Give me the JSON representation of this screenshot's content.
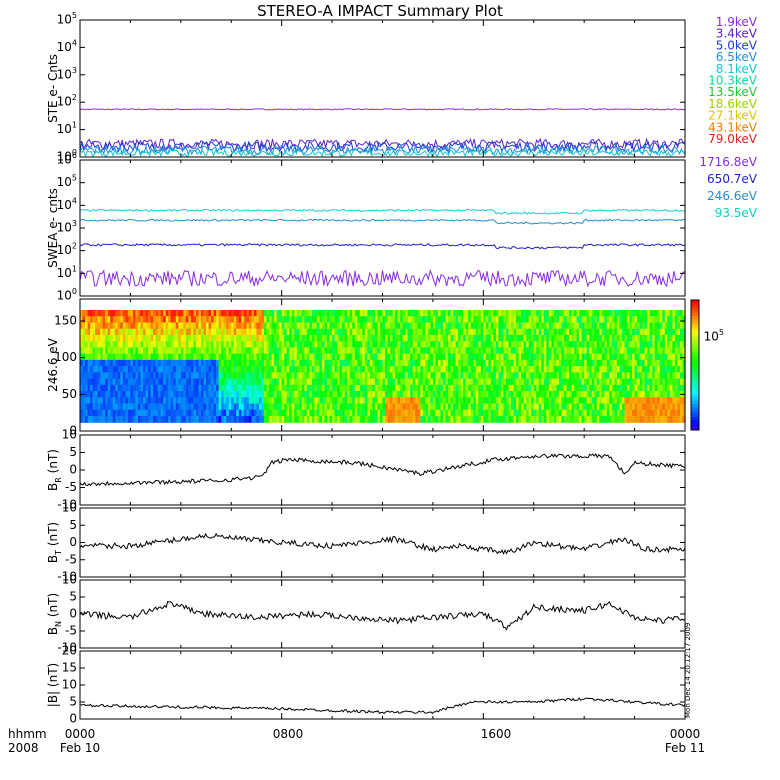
{
  "title": "STEREO-A IMPACT Summary Plot",
  "stamp": "Mon Dec 14 20:12:17 2009",
  "footer": {
    "hhmm_label": "hhmm",
    "year_label": "2008",
    "tick_labels": [
      "0000",
      "0800",
      "1600",
      "0000"
    ],
    "date_start": "Feb 10",
    "date_end": "Feb 11"
  },
  "chart_data": [
    {
      "type": "line",
      "ylabel": "STE e- Cnts",
      "yscale": "log",
      "ylim": [
        1,
        100000
      ],
      "ytick_labels": [
        "10^0",
        "10^1",
        "10^2",
        "10^3",
        "10^4",
        "10^5"
      ],
      "x_hours": [
        0,
        24
      ],
      "legend": [
        {
          "label": "1.9keV",
          "color": "#8a2be2"
        },
        {
          "label": "3.4keV",
          "color": "#6020d0"
        },
        {
          "label": "5.0keV",
          "color": "#1f3fd0"
        },
        {
          "label": "6.5keV",
          "color": "#2090e0"
        },
        {
          "label": "8.1keV",
          "color": "#10c8d0"
        },
        {
          "label": "10.3keV",
          "color": "#10d8a0"
        },
        {
          "label": "13.5keV",
          "color": "#20c830"
        },
        {
          "label": "18.6keV",
          "color": "#a0d000"
        },
        {
          "label": "27.1keV",
          "color": "#e0c000"
        },
        {
          "label": "43.1keV",
          "color": "#f08000"
        },
        {
          "label": "79.0keV",
          "color": "#e02020"
        }
      ],
      "series": [
        {
          "name": "1.9keV",
          "color": "#8a2be2",
          "level": 55,
          "noise": 0.02
        },
        {
          "name": "3.4keV",
          "color": "#6020d0",
          "level": 3.0,
          "noise": 0.18
        },
        {
          "name": "5.0keV",
          "color": "#1f3fd0",
          "level": 2.4,
          "noise": 0.18
        },
        {
          "name": "6.5keV",
          "color": "#2090e0",
          "level": 1.8,
          "noise": 0.16
        },
        {
          "name": "8.1keV",
          "color": "#10c8d0",
          "level": 1.4,
          "noise": 0.12
        }
      ]
    },
    {
      "type": "line",
      "ylabel": "SWEA e- cnts",
      "yscale": "log",
      "ylim": [
        1,
        1000000
      ],
      "ytick_labels": [
        "10^0",
        "10^1",
        "10^2",
        "10^3",
        "10^4",
        "10^5",
        "10^6"
      ],
      "x_hours": [
        0,
        24
      ],
      "legend": [
        {
          "label": "1716.8eV",
          "color": "#8a2be2"
        },
        {
          "label": "650.7eV",
          "color": "#1f1fd0"
        },
        {
          "label": "246.6eV",
          "color": "#1f8fd0"
        },
        {
          "label": "93.5eV",
          "color": "#10d0c8"
        }
      ],
      "series": [
        {
          "name": "93.5eV",
          "color": "#10d0c8",
          "level": 6000,
          "noise": 0.04
        },
        {
          "name": "246.6eV",
          "color": "#1f8fd0",
          "level": 2200,
          "noise": 0.04
        },
        {
          "name": "650.7eV",
          "color": "#1f1fd0",
          "level": 180,
          "noise": 0.05
        },
        {
          "name": "1716.8eV",
          "color": "#8a2be2",
          "level": 6,
          "noise": 0.35
        }
      ]
    },
    {
      "type": "heatmap",
      "ylabel": "246.6 eV",
      "ylim": [
        0,
        180
      ],
      "ytick_labels": [
        "0",
        "50",
        "100",
        "150"
      ],
      "colorbar_label": "10^5",
      "x_hours": [
        0,
        24
      ]
    },
    {
      "type": "line",
      "ylabel": "B_R (nT)",
      "ylim": [
        -10,
        10
      ],
      "ytick_labels": [
        "-10",
        "-5",
        "0",
        "5",
        "10"
      ],
      "x_hours": [
        0,
        24
      ],
      "keyframes": [
        [
          0,
          -4
        ],
        [
          3,
          -3.5
        ],
        [
          5.5,
          -3
        ],
        [
          7.2,
          -2
        ],
        [
          7.6,
          2
        ],
        [
          8.2,
          3
        ],
        [
          11,
          2
        ],
        [
          13.5,
          -1
        ],
        [
          15,
          1
        ],
        [
          16.5,
          3
        ],
        [
          18,
          4
        ],
        [
          21,
          4
        ],
        [
          21.6,
          -1
        ],
        [
          22,
          2
        ],
        [
          24,
          1
        ]
      ],
      "noise": 0.6
    },
    {
      "type": "line",
      "ylabel": "B_T (nT)",
      "ylim": [
        -10,
        10
      ],
      "ytick_labels": [
        "-10",
        "-5",
        "0",
        "5",
        "10"
      ],
      "x_hours": [
        0,
        24
      ],
      "keyframes": [
        [
          0,
          -1
        ],
        [
          2,
          -1
        ],
        [
          4,
          1
        ],
        [
          5,
          2
        ],
        [
          8,
          0
        ],
        [
          10,
          -1
        ],
        [
          12.5,
          1
        ],
        [
          14,
          -2
        ],
        [
          15,
          -1
        ],
        [
          17,
          -3
        ],
        [
          18,
          0
        ],
        [
          20,
          -2
        ],
        [
          21.5,
          1
        ],
        [
          22.5,
          -2
        ],
        [
          24,
          -2
        ]
      ],
      "noise": 0.8
    },
    {
      "type": "line",
      "ylabel": "B_N (nT)",
      "ylim": [
        -10,
        10
      ],
      "ytick_labels": [
        "-10",
        "-5",
        "0",
        "5",
        "10"
      ],
      "x_hours": [
        0,
        24
      ],
      "keyframes": [
        [
          0,
          0
        ],
        [
          2,
          -1
        ],
        [
          3.5,
          3
        ],
        [
          5,
          0
        ],
        [
          7,
          -1
        ],
        [
          9,
          0
        ],
        [
          11,
          -1
        ],
        [
          12.5,
          -2
        ],
        [
          14,
          -1
        ],
        [
          16,
          0
        ],
        [
          17,
          -4
        ],
        [
          18,
          2
        ],
        [
          20,
          1
        ],
        [
          21,
          3
        ],
        [
          22,
          -1
        ],
        [
          23,
          -2
        ],
        [
          24,
          -1
        ]
      ],
      "noise": 0.9
    },
    {
      "type": "line",
      "ylabel": "|B| (nT)",
      "ylim": [
        0,
        20
      ],
      "ytick_labels": [
        "0",
        "5",
        "10",
        "15",
        "20"
      ],
      "x_hours": [
        0,
        24
      ],
      "keyframes": [
        [
          0,
          4
        ],
        [
          8,
          3
        ],
        [
          12,
          2
        ],
        [
          14,
          2
        ],
        [
          15.5,
          5
        ],
        [
          18,
          5
        ],
        [
          20,
          6
        ],
        [
          22,
          5
        ],
        [
          24,
          4
        ]
      ],
      "noise": 0.4
    }
  ]
}
